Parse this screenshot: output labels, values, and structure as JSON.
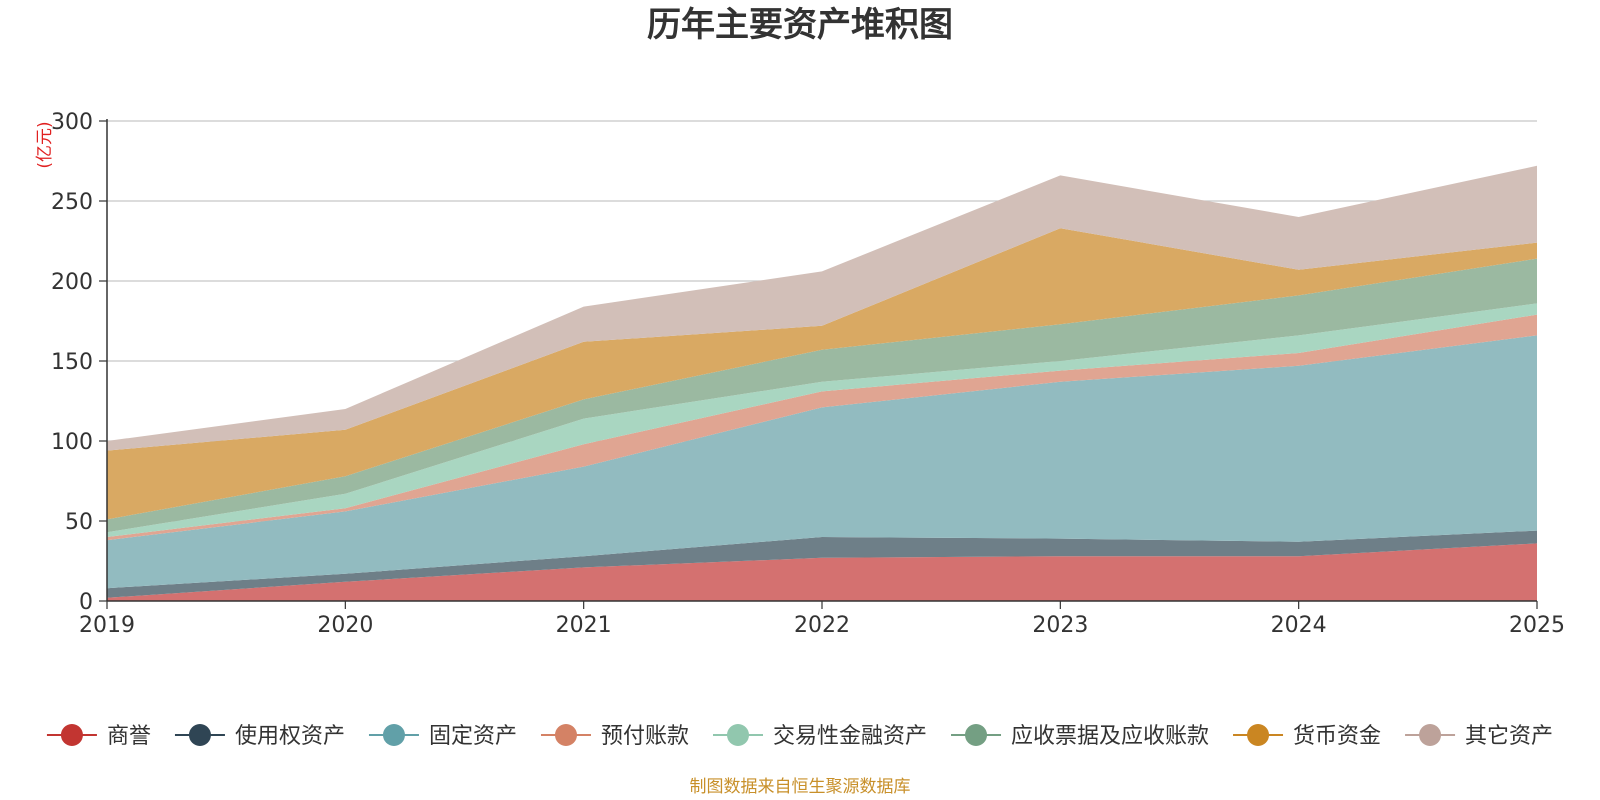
{
  "chart_data": {
    "type": "area",
    "stacked": true,
    "title": "历年主要资产堆积图",
    "ylabel": "(亿元)",
    "source": "制图数据来自恒生聚源数据库",
    "categories": [
      "2019",
      "2020",
      "2021",
      "2022",
      "2023",
      "2024",
      "2025"
    ],
    "ylim": [
      0,
      300
    ],
    "yticks": [
      0,
      50,
      100,
      150,
      200,
      250,
      300
    ],
    "grid": true,
    "legend_position": "bottom",
    "series": [
      {
        "name": "商誉",
        "color": "#c23531",
        "area_color": "#d47170",
        "values": [
          2,
          12,
          21,
          27,
          28,
          28,
          36
        ]
      },
      {
        "name": "使用权资产",
        "color": "#2f4554",
        "area_color": "#6e7f88",
        "values": [
          6,
          5,
          7,
          13,
          11,
          9,
          8
        ]
      },
      {
        "name": "固定资产",
        "color": "#61a0a8",
        "area_color": "#92bbc0",
        "values": [
          30,
          39,
          56,
          81,
          98,
          110,
          122
        ]
      },
      {
        "name": "预付账款",
        "color": "#d48265",
        "area_color": "#e0a592",
        "values": [
          2,
          2,
          14,
          10,
          7,
          8,
          13
        ]
      },
      {
        "name": "交易性金融资产",
        "color": "#91c7ae",
        "area_color": "#a9d6c1",
        "values": [
          3,
          9,
          16,
          6,
          6,
          11,
          7
        ]
      },
      {
        "name": "应收票据及应收账款",
        "color": "#749f83",
        "area_color": "#9bb9a1",
        "values": [
          8,
          11,
          12,
          20,
          23,
          25,
          28
        ]
      },
      {
        "name": "货币资金",
        "color": "#ca8622",
        "area_color": "#d9a963",
        "values": [
          43,
          29,
          36,
          15,
          60,
          16,
          10
        ]
      },
      {
        "name": "其它资产",
        "color": "#bda29a",
        "area_color": "#d2bfb8",
        "values": [
          6,
          13,
          22,
          34,
          33,
          33,
          48
        ]
      }
    ]
  }
}
